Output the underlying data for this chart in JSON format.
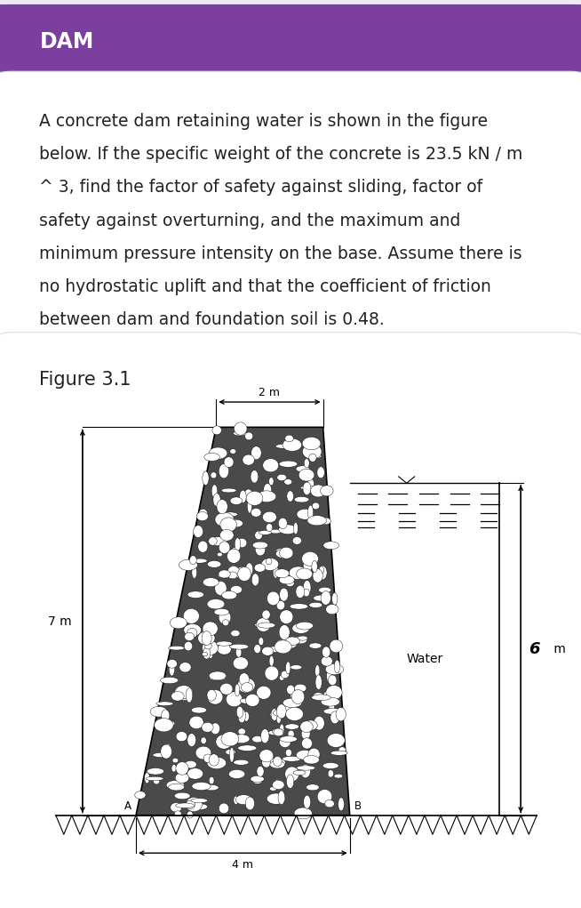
{
  "title": "DAM",
  "title_bg_color": "#7B3FA0",
  "title_text_color": "#FFFFFF",
  "desc_lines": [
    "A concrete dam retaining water is shown in the figure",
    "below. If the specific weight of the concrete is 23.5 kN / m",
    "^ 3, find the factor of safety against sliding, factor of",
    "safety against overturning, and the maximum and",
    "minimum pressure intensity on the base. Assume there is",
    "no hydrostatic uplift and that the coefficient of friction",
    "between dam and foundation soil is 0.48."
  ],
  "figure_label": "Figure 3.1",
  "label_7m": "7 m",
  "label_6m": "6",
  "label_6m_unit": " m",
  "label_2m": "2 m",
  "label_4m": "4 m",
  "label_water": "Water",
  "label_A": "A",
  "label_B": "B",
  "bg_color": "#EDEAF4",
  "card_color": "#FFFFFF",
  "text_color": "#222222",
  "desc_font_size": 13.5,
  "figure_label_font_size": 15,
  "dam_fill_color": "#4A4A4A",
  "stone_color": "#FFFFFF",
  "stone_edge_color": "#000000"
}
